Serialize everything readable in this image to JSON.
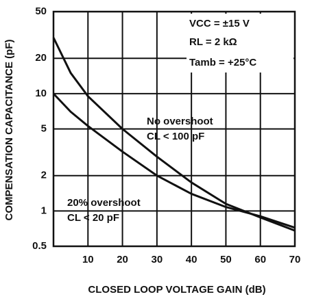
{
  "chart_data": {
    "type": "line",
    "xlabel": "CLOSED LOOP VOLTAGE GAIN (dB)",
    "ylabel": "COMPENSATION CAPACITANCE (pF)",
    "xlim": [
      0,
      70
    ],
    "xticks": [
      10,
      20,
      30,
      40,
      50,
      60,
      70
    ],
    "ylim": [
      0.5,
      50
    ],
    "yticks": [
      0.5,
      1,
      2,
      5,
      10,
      20,
      50
    ],
    "ylog": true,
    "grid": true,
    "x": [
      0,
      5,
      10,
      20,
      30,
      40,
      50,
      60,
      70
    ],
    "series": [
      {
        "name": "No overshoot",
        "color": "#111111",
        "values": [
          30,
          15,
          9.5,
          5,
          2.9,
          1.75,
          1.15,
          0.88,
          0.68
        ]
      },
      {
        "name": "20% overshoot",
        "color": "#111111",
        "values": [
          10,
          7,
          5.3,
          3.2,
          2,
          1.4,
          1.08,
          0.9,
          0.72
        ]
      }
    ],
    "annotations": [
      "VCC = ±15 V",
      "RL = 2 kΩ",
      "Tamb = +25°C",
      "CL < 100 pF",
      "CL < 20 pF"
    ]
  }
}
